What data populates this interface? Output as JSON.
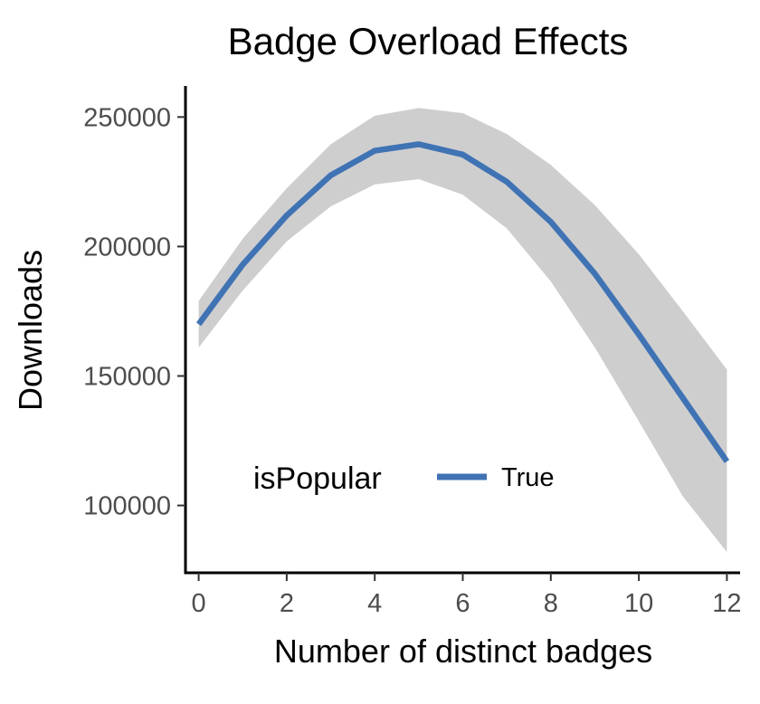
{
  "chart_data": {
    "type": "line",
    "title": "Badge Overload Effects",
    "xlabel": "Number of distinct badges",
    "ylabel": "Downloads",
    "xlim": [
      -0.3,
      12.3
    ],
    "ylim": [
      74000,
      262000
    ],
    "x_ticks": [
      0,
      2,
      4,
      6,
      8,
      10,
      12
    ],
    "y_ticks": [
      100000,
      150000,
      200000,
      250000
    ],
    "x_tick_labels": [
      "0",
      "2",
      "4",
      "6",
      "8",
      "10",
      "12"
    ],
    "y_tick_labels": [
      "100000",
      "150000",
      "200000",
      "250000"
    ],
    "grid": false,
    "legend": {
      "title": "isPopular",
      "position": "bottom-left, inside plot",
      "entries": [
        "True"
      ]
    },
    "series": [
      {
        "name": "True",
        "color": "#3f73b4",
        "x": [
          0,
          1,
          2,
          3,
          4,
          5,
          6,
          7,
          8,
          9,
          10,
          11,
          12
        ],
        "y": [
          170000,
          193000,
          212000,
          227500,
          237000,
          239500,
          235500,
          225000,
          209500,
          189500,
          166000,
          141500,
          117000
        ],
        "ci_lower": [
          161000,
          183000,
          202000,
          215500,
          224000,
          226000,
          220000,
          207000,
          186500,
          161000,
          132500,
          103500,
          82000
        ],
        "ci_upper": [
          179000,
          203000,
          222500,
          239500,
          250500,
          253500,
          251500,
          243500,
          231500,
          216000,
          197000,
          175000,
          152500
        ]
      }
    ],
    "band_color": "#cfcecf"
  }
}
